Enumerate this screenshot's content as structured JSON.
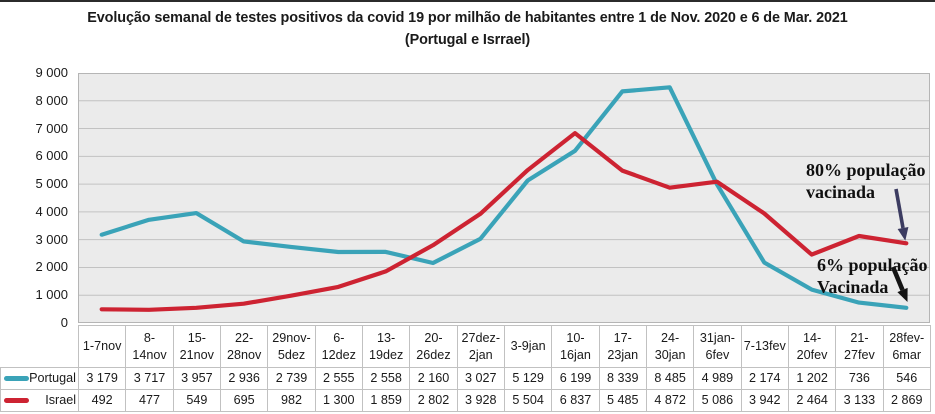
{
  "title": {
    "line1": "Evolução semanal de testes positivos da covid 19 por milhão de habitantes entre 1 de Nov. 2020 e 6 de Mar. 2021",
    "line2": "(Portugal e Isrrael)"
  },
  "chart_data": {
    "type": "line",
    "categories": [
      "1-7nov",
      "8-14nov",
      "15-21nov",
      "22-28nov",
      "29nov-5dez",
      "6-12dez",
      "13-19dez",
      "20-26dez",
      "27dez-2jan",
      "3-9jan",
      "10-16jan",
      "17-23jan",
      "24-30jan",
      "31jan-6fev",
      "7-13fev",
      "14-20fev",
      "21-27fev",
      "28fev-6mar"
    ],
    "categories_wrapped": [
      "1-7nov",
      "8-\n14nov",
      "15-\n21nov",
      "22-\n28nov",
      "29nov-\n5dez",
      "6-\n12dez",
      "13-\n19dez",
      "20-\n26dez",
      "27dez-\n2jan",
      "3-9jan",
      "10-\n16jan",
      "17-\n23jan",
      "24-\n30jan",
      "31jan-\n6fev",
      "7-13fev",
      "14-\n20fev",
      "21-\n27fev",
      "28fev-\n6mar"
    ],
    "series": [
      {
        "name": "Portugal",
        "color": "#3AA3B8",
        "values": [
          3179,
          3717,
          3957,
          2936,
          2739,
          2555,
          2558,
          2160,
          3027,
          5129,
          6199,
          8339,
          8485,
          4989,
          2174,
          1202,
          736,
          546
        ],
        "display": [
          "3 179",
          "3 717",
          "3 957",
          "2 936",
          "2 739",
          "2 555",
          "2 558",
          "2 160",
          "3 027",
          "5 129",
          "6 199",
          "8 339",
          "8 485",
          "4 989",
          "2 174",
          "1 202",
          "736",
          "546"
        ]
      },
      {
        "name": "Israel",
        "color": "#CD2332",
        "values": [
          492,
          477,
          549,
          695,
          982,
          1300,
          1859,
          2802,
          3928,
          5504,
          6837,
          5485,
          4872,
          5086,
          3942,
          2464,
          3133,
          2869
        ],
        "display": [
          "492",
          "477",
          "549",
          "695",
          "982",
          "1 300",
          "1 859",
          "2 802",
          "3 928",
          "5 504",
          "6 837",
          "5 485",
          "4 872",
          "5 086",
          "3 942",
          "2 464",
          "3 133",
          "2 869"
        ]
      }
    ],
    "ylim": [
      0,
      9000
    ],
    "ytick_step": 1000,
    "ytick_labels": [
      "0",
      "1 000",
      "2 000",
      "3 000",
      "4 000",
      "5 000",
      "6 000",
      "7 000",
      "8 000",
      "9 000"
    ],
    "grid": "horizontal",
    "legend_position": "table-left",
    "plot_bg": "#EBEBEB",
    "grid_color": "#C2C2C2",
    "plot_border": "#B5B5B5"
  },
  "annotations": [
    {
      "lines": [
        "80% população",
        "vacinada"
      ],
      "arrow_color": "#3C3C61"
    },
    {
      "lines": [
        "6% população",
        "Vacinada"
      ],
      "arrow_color": "#141414"
    }
  ],
  "table_border_color": "#C1C1C1"
}
